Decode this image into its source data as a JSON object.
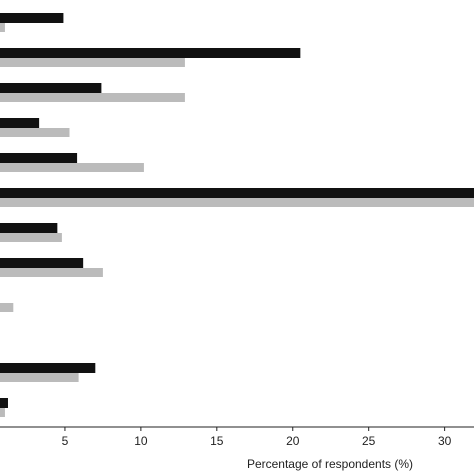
{
  "chart_data": {
    "type": "barh",
    "xlabel": "Percentage of respondents (%)",
    "categories": [
      null,
      null,
      null,
      null,
      null,
      null,
      null,
      null,
      null,
      null,
      null,
      null
    ],
    "series": [
      {
        "color": "#111111",
        "values": [
          4.9,
          20.5,
          7.4,
          3.3,
          5.8,
          32,
          4.5,
          6.2,
          null,
          null,
          7.0,
          1.25
        ]
      },
      {
        "color": "#bbbbbb",
        "values": [
          1.05,
          12.9,
          12.9,
          5.3,
          10.2,
          32,
          4.8,
          7.5,
          1.6,
          null,
          5.9,
          1.05
        ]
      }
    ],
    "xlim": [
      0,
      32
    ],
    "xticks": [
      5,
      10,
      15,
      20,
      25,
      30
    ]
  }
}
